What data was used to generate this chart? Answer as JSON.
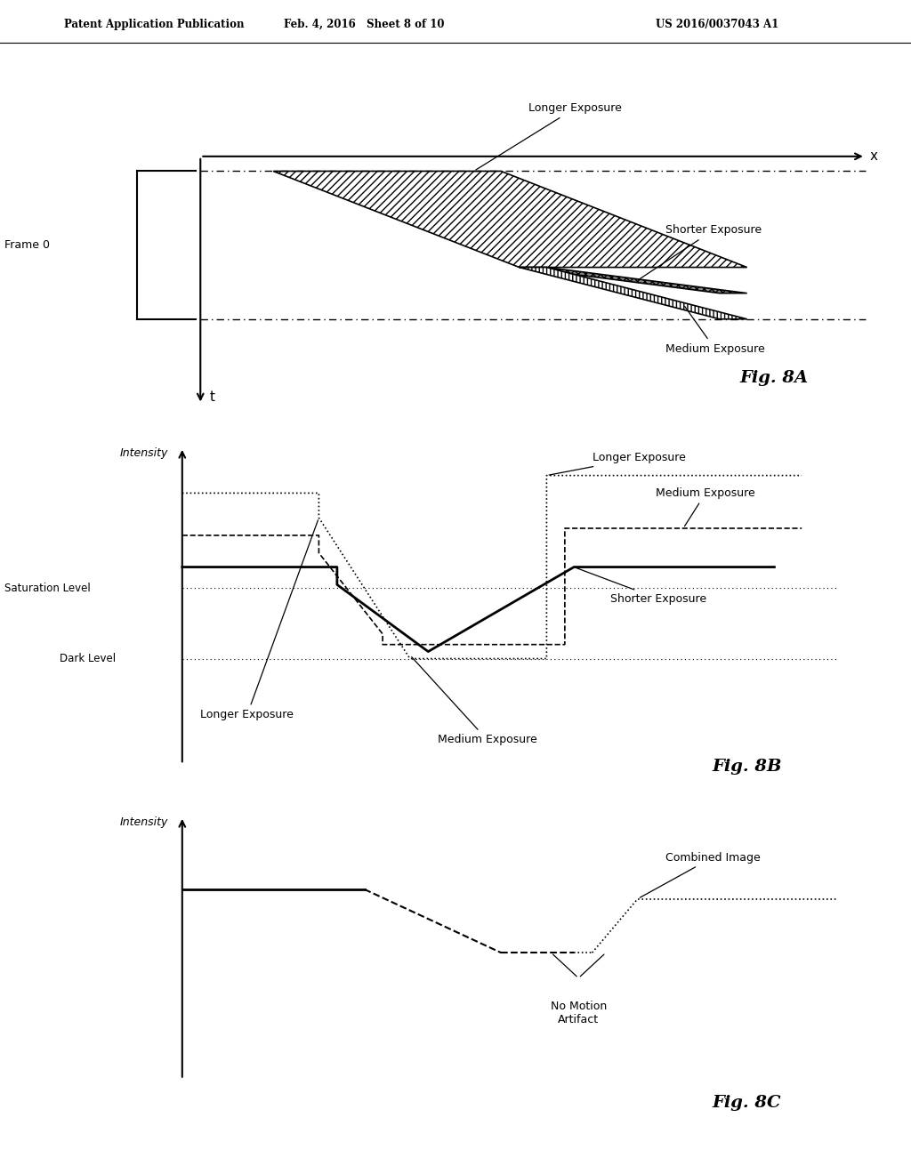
{
  "header_left": "Patent Application Publication",
  "header_mid": "Feb. 4, 2016   Sheet 8 of 10",
  "header_right": "US 2016/0037043 A1",
  "fig_label_8A": "Fig. 8A",
  "fig_label_8B": "Fig. 8B",
  "fig_label_8C": "Fig. 8C",
  "background_color": "#ffffff",
  "line_color": "#000000"
}
